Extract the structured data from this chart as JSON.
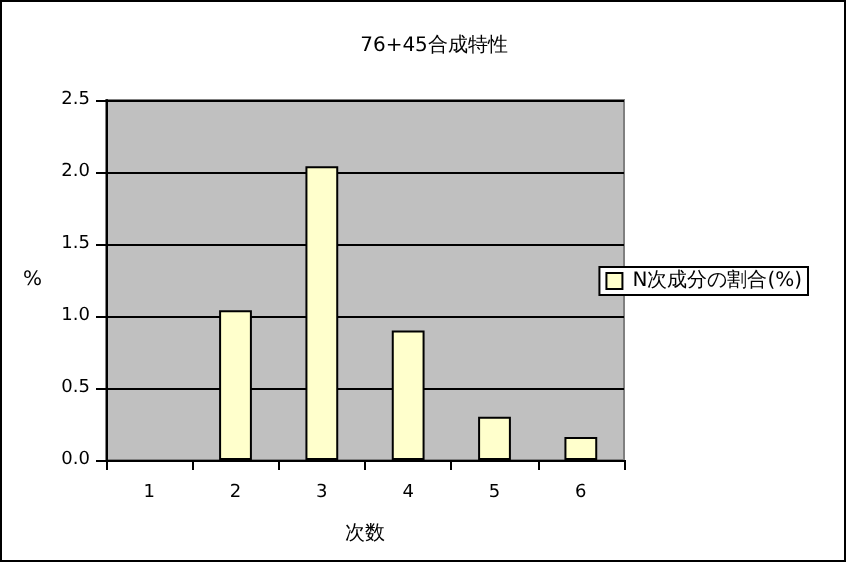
{
  "chart_data": {
    "type": "bar",
    "title": "76+45合成特性",
    "xlabel": "次数",
    "ylabel": "%",
    "categories": [
      "1",
      "2",
      "3",
      "4",
      "5",
      "6"
    ],
    "series": [
      {
        "name": "N次成分の割合(%)",
        "color": "#ffffcc",
        "values": [
          0,
          1.04,
          2.04,
          0.9,
          0.3,
          0.16
        ]
      }
    ],
    "ylim": [
      0,
      2.5
    ],
    "yticks": [
      {
        "value": 0,
        "label": "0.0"
      },
      0.5,
      {
        "value": 1,
        "label": "1.0"
      },
      1.5,
      {
        "value": 2,
        "label": "2.0"
      },
      2.5
    ],
    "grid": "y",
    "legend": "right"
  }
}
